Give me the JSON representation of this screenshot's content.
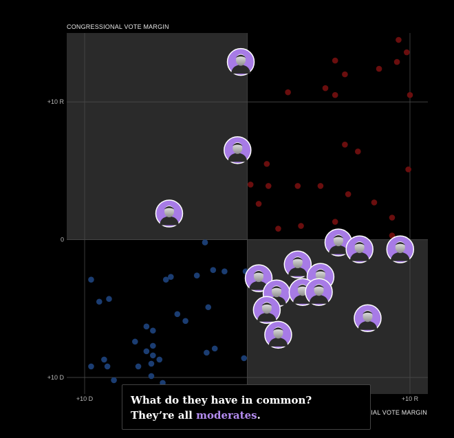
{
  "chart_data": {
    "type": "scatter",
    "ylabel": "CONGRESSIONAL VOTE MARGIN",
    "xlabel": "PRESIDENTIAL VOTE MARGIN",
    "xlabel_visible": "IAL VOTE MARGIN",
    "xlim": [
      -11.1,
      11.1
    ],
    "ylim": [
      -11.2,
      15.0
    ],
    "x_ticks": [
      {
        "value": -10,
        "label": "+10 D"
      },
      {
        "value": 10,
        "label": "+10 R"
      }
    ],
    "y_ticks": [
      {
        "value": 10,
        "label": "+10 R"
      },
      {
        "value": 0,
        "label": "0"
      },
      {
        "value": -10,
        "label": "+10 D"
      }
    ],
    "grid": true,
    "shaded_quadrants": [
      "top-left",
      "bottom-right"
    ],
    "colors": {
      "rep": "#6a0e0e",
      "dem": "#1b3d72",
      "highlight": "#a77be6",
      "shade": "#2a2a2a",
      "grid": "#4a4a4a"
    },
    "series": [
      {
        "party": "rep",
        "points": [
          [
            9.3,
            14.5
          ],
          [
            9.8,
            13.6
          ],
          [
            9.2,
            12.9
          ],
          [
            5.4,
            13.0
          ],
          [
            8.1,
            12.4
          ],
          [
            6.0,
            12.0
          ],
          [
            4.8,
            11.0
          ],
          [
            5.4,
            10.5
          ],
          [
            2.5,
            10.7
          ],
          [
            10.0,
            10.5
          ],
          [
            6.0,
            6.9
          ],
          [
            6.8,
            6.4
          ],
          [
            1.2,
            5.5
          ],
          [
            9.9,
            5.1
          ],
          [
            0.2,
            4.0
          ],
          [
            1.3,
            3.9
          ],
          [
            3.1,
            3.9
          ],
          [
            4.5,
            3.9
          ],
          [
            6.2,
            3.3
          ],
          [
            7.8,
            2.7
          ],
          [
            0.7,
            2.6
          ],
          [
            8.9,
            1.6
          ],
          [
            5.4,
            1.3
          ],
          [
            3.3,
            1.0
          ],
          [
            1.9,
            0.8
          ],
          [
            8.9,
            0.3
          ]
        ]
      },
      {
        "party": "dem",
        "points": [
          [
            -2.6,
            -0.2
          ],
          [
            -9.6,
            -2.9
          ],
          [
            -5.0,
            -2.9
          ],
          [
            -4.7,
            -2.7
          ],
          [
            -3.1,
            -2.6
          ],
          [
            -2.1,
            -2.2
          ],
          [
            -1.4,
            -2.3
          ],
          [
            -0.1,
            -2.3
          ],
          [
            -9.1,
            -4.5
          ],
          [
            -8.5,
            -4.3
          ],
          [
            -2.4,
            -4.9
          ],
          [
            -4.3,
            -5.4
          ],
          [
            -3.8,
            -5.9
          ],
          [
            -6.2,
            -6.3
          ],
          [
            -5.8,
            -6.6
          ],
          [
            -6.9,
            -7.4
          ],
          [
            -5.8,
            -7.7
          ],
          [
            -6.2,
            -8.1
          ],
          [
            -5.8,
            -8.4
          ],
          [
            -2.0,
            -7.9
          ],
          [
            -2.5,
            -8.2
          ],
          [
            -0.2,
            -8.6
          ],
          [
            -8.8,
            -8.7
          ],
          [
            -5.4,
            -8.7
          ],
          [
            -9.6,
            -9.2
          ],
          [
            -8.6,
            -9.2
          ],
          [
            -6.7,
            -9.2
          ],
          [
            -5.9,
            -9.0
          ],
          [
            -8.2,
            -10.2
          ],
          [
            -5.9,
            -9.9
          ],
          [
            -5.2,
            -10.4
          ]
        ]
      }
    ],
    "highlighted": [
      [
        -0.4,
        12.9
      ],
      [
        -0.6,
        6.5
      ],
      [
        -4.8,
        1.9
      ],
      [
        5.6,
        -0.2
      ],
      [
        6.9,
        -0.7
      ],
      [
        9.4,
        -0.7
      ],
      [
        3.1,
        -1.8
      ],
      [
        0.7,
        -2.8
      ],
      [
        4.5,
        -2.7
      ],
      [
        1.8,
        -3.9
      ],
      [
        3.4,
        -3.8
      ],
      [
        4.4,
        -3.8
      ],
      [
        1.2,
        -5.1
      ],
      [
        7.4,
        -5.7
      ],
      [
        1.9,
        -6.9
      ]
    ]
  },
  "caption": {
    "line1": "What do they have in common?",
    "line2_prefix": "They’re all ",
    "line2_highlight": "moderates",
    "line2_suffix": "."
  }
}
